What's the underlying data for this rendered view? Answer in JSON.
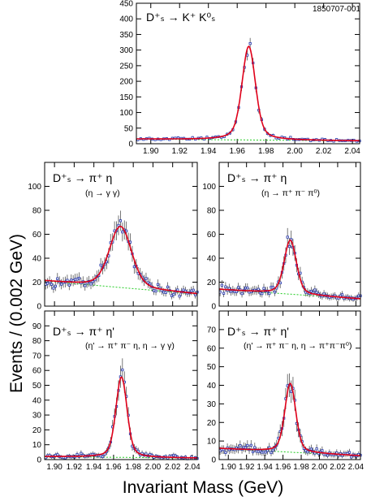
{
  "figure_code": "1850707-001",
  "y_axis_label": "Events / (0.002 GeV)",
  "x_axis_label": "Invariant Mass (GeV)",
  "chart_data": [
    {
      "type": "scatter",
      "title": "D⁺ₛ → K⁺ K⁰ₛ",
      "subtitle": "",
      "xlim": [
        1.89,
        2.045
      ],
      "ylim": [
        0,
        450
      ],
      "yticks": [
        0,
        50,
        100,
        150,
        200,
        250,
        300,
        350,
        400,
        450
      ],
      "xticks": [
        "1.90",
        "1.92",
        "1.94",
        "1.96",
        "1.98",
        "2.00",
        "2.02",
        "2.04"
      ],
      "peak": {
        "mean": 1.968,
        "sigma": 0.0045,
        "height": 300,
        "tail": 0.35
      },
      "background": {
        "start": 15,
        "end": 9
      },
      "grid": false
    },
    {
      "type": "scatter",
      "title": "D⁺ₛ → π⁺ η",
      "subtitle": "(η → γ γ)",
      "xlim": [
        1.89,
        2.045
      ],
      "ylim": [
        0,
        120
      ],
      "yticks": [
        0,
        20,
        40,
        60,
        80,
        100
      ],
      "xticks": [],
      "peak": {
        "mean": 1.967,
        "sigma": 0.011,
        "height": 51,
        "tail": 0.25
      },
      "background": {
        "start": 21,
        "end": 10
      },
      "grid": false
    },
    {
      "type": "scatter",
      "title": "D⁺ₛ → π⁺ η",
      "subtitle": "(η → π⁺ π⁻ π⁰)",
      "xlim": [
        1.89,
        2.045
      ],
      "ylim": [
        0,
        120
      ],
      "yticks": [
        0,
        20,
        40,
        60,
        80,
        100
      ],
      "xticks": [],
      "peak": {
        "mean": 1.968,
        "sigma": 0.0065,
        "height": 45,
        "tail": 0.3
      },
      "background": {
        "start": 14,
        "end": 6
      },
      "grid": false
    },
    {
      "type": "scatter",
      "title": "D⁺ₛ → π⁺ η'",
      "subtitle": "(η' → π⁺ π⁻ η, η → γ γ)",
      "xlim": [
        1.89,
        2.045
      ],
      "ylim": [
        0,
        100
      ],
      "yticks": [
        0,
        10,
        20,
        30,
        40,
        50,
        60,
        70,
        80,
        90
      ],
      "xticks": [
        "1.90",
        "1.92",
        "1.94",
        "1.96",
        "1.98",
        "2.00",
        "2.02",
        "2.04"
      ],
      "peak": {
        "mean": 1.968,
        "sigma": 0.0055,
        "height": 54,
        "tail": 0.3
      },
      "background": {
        "start": 2,
        "end": 1
      },
      "grid": false
    },
    {
      "type": "scatter",
      "title": "D⁺ₛ → π⁺ η'",
      "subtitle": "(η' → π⁺ π⁻ η, η → π⁺π⁻π⁰)",
      "xlim": [
        1.89,
        2.045
      ],
      "ylim": [
        0,
        80
      ],
      "yticks": [
        0,
        10,
        20,
        30,
        40,
        50,
        60,
        70
      ],
      "xticks": [
        "1.90",
        "1.92",
        "1.94",
        "1.96",
        "1.98",
        "2.00",
        "2.02",
        "2.04"
      ],
      "peak": {
        "mean": 1.968,
        "sigma": 0.0058,
        "height": 37,
        "tail": 0.3
      },
      "background": {
        "start": 6,
        "end": 2
      },
      "grid": false
    }
  ],
  "colors": {
    "fit": "#e0001a",
    "background": "#22cc22",
    "points": "#2233aa",
    "errorbars": "#555555",
    "frame": "#000000"
  }
}
